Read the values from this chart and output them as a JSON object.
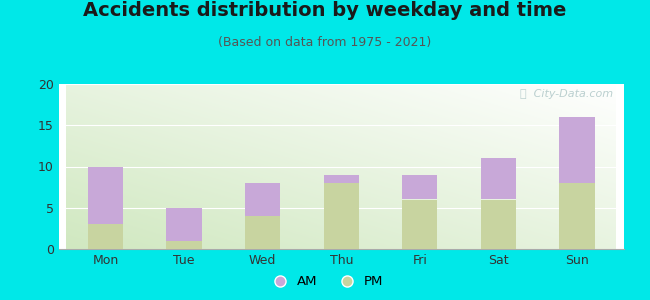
{
  "categories": [
    "Mon",
    "Tue",
    "Wed",
    "Thu",
    "Fri",
    "Sat",
    "Sun"
  ],
  "pm_values": [
    3,
    1,
    4,
    8,
    6,
    6,
    8
  ],
  "am_values": [
    7,
    4,
    4,
    1,
    3,
    5,
    8
  ],
  "am_color": "#c8a8d8",
  "pm_color": "#c8d4a0",
  "title": "Accidents distribution by weekday and time",
  "subtitle": "(Based on data from 1975 - 2021)",
  "ylim": [
    0,
    20
  ],
  "yticks": [
    0,
    5,
    10,
    15,
    20
  ],
  "background_color": "#00e8e8",
  "watermark": "ⓘ  City-Data.com",
  "legend_am": "AM",
  "legend_pm": "PM",
  "bar_width": 0.45,
  "title_fontsize": 14,
  "subtitle_fontsize": 9
}
